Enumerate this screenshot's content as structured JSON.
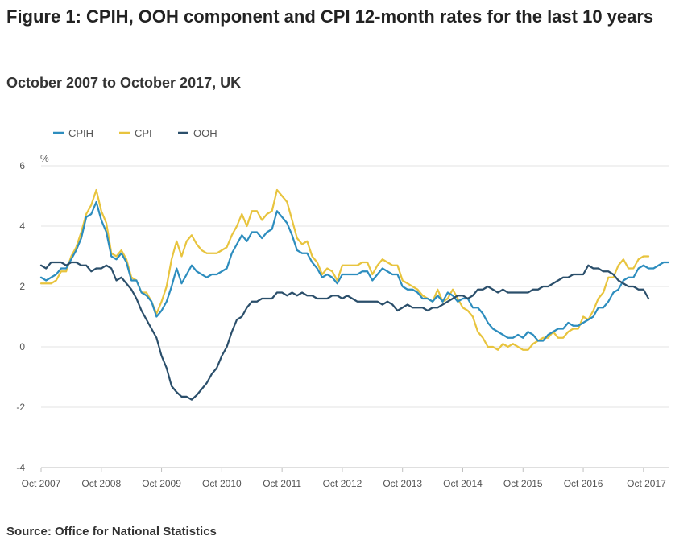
{
  "chart_data": {
    "type": "line",
    "title": "Figure 1: CPIH, OOH component and CPI 12-month rates for the last 10 years",
    "subtitle": "October 2007 to October 2017, UK",
    "source": "Source: Office for National Statistics",
    "ylabel": "%",
    "xlabel": "",
    "ylim": [
      -4,
      6
    ],
    "yticks": [
      -4,
      -2,
      0,
      2,
      4,
      6
    ],
    "ytick_labels": [
      "-4",
      "-2",
      "0",
      "2",
      "4",
      "6"
    ],
    "x_start": "Oct 2007",
    "x_end": "Oct 2017",
    "x_step": "monthly",
    "xtick_labels": [
      "Oct 2007",
      "Oct 2008",
      "Oct 2009",
      "Oct 2010",
      "Oct 2011",
      "Oct 2012",
      "Oct 2013",
      "Oct 2014",
      "Oct 2015",
      "Oct 2016",
      "Oct 2017"
    ],
    "grid": true,
    "legend_position": "top-left",
    "series": [
      {
        "name": "CPIH",
        "color": "#2d8dbe",
        "values": [
          2.3,
          2.2,
          2.3,
          2.4,
          2.6,
          2.6,
          2.9,
          3.2,
          3.6,
          4.3,
          4.4,
          4.8,
          4.2,
          3.8,
          3.0,
          2.9,
          3.1,
          2.8,
          2.2,
          2.2,
          1.8,
          1.7,
          1.5,
          1.0,
          1.2,
          1.5,
          2.0,
          2.6,
          2.1,
          2.4,
          2.7,
          2.5,
          2.4,
          2.3,
          2.4,
          2.4,
          2.5,
          2.6,
          3.1,
          3.4,
          3.7,
          3.5,
          3.8,
          3.8,
          3.6,
          3.8,
          3.9,
          4.5,
          4.3,
          4.1,
          3.7,
          3.2,
          3.1,
          3.1,
          2.8,
          2.6,
          2.3,
          2.4,
          2.3,
          2.1,
          2.4,
          2.4,
          2.4,
          2.4,
          2.5,
          2.5,
          2.2,
          2.4,
          2.6,
          2.5,
          2.4,
          2.4,
          2.0,
          1.9,
          1.9,
          1.8,
          1.6,
          1.6,
          1.5,
          1.7,
          1.5,
          1.8,
          1.7,
          1.5,
          1.6,
          1.6,
          1.3,
          1.3,
          1.1,
          0.8,
          0.6,
          0.5,
          0.4,
          0.3,
          0.3,
          0.4,
          0.3,
          0.5,
          0.4,
          0.2,
          0.2,
          0.4,
          0.5,
          0.6,
          0.6,
          0.8,
          0.7,
          0.7,
          0.8,
          0.9,
          1.0,
          1.3,
          1.3,
          1.5,
          1.8,
          1.9,
          2.2,
          2.3,
          2.3,
          2.6,
          2.7,
          2.6,
          2.6,
          2.7,
          2.8,
          2.8
        ]
      },
      {
        "name": "CPI",
        "color": "#e8c43e",
        "values": [
          2.1,
          2.1,
          2.1,
          2.2,
          2.5,
          2.5,
          3.0,
          3.3,
          3.8,
          4.4,
          4.7,
          5.2,
          4.5,
          4.1,
          3.1,
          3.0,
          3.2,
          2.9,
          2.3,
          2.2,
          1.8,
          1.8,
          1.5,
          1.1,
          1.5,
          2.0,
          2.9,
          3.5,
          3.0,
          3.5,
          3.7,
          3.4,
          3.2,
          3.1,
          3.1,
          3.1,
          3.2,
          3.3,
          3.7,
          4.0,
          4.4,
          4.0,
          4.5,
          4.5,
          4.2,
          4.4,
          4.5,
          5.2,
          5.0,
          4.8,
          4.2,
          3.6,
          3.4,
          3.5,
          3.0,
          2.8,
          2.4,
          2.6,
          2.5,
          2.2,
          2.7,
          2.7,
          2.7,
          2.7,
          2.8,
          2.8,
          2.4,
          2.7,
          2.9,
          2.8,
          2.7,
          2.7,
          2.2,
          2.1,
          2.0,
          1.9,
          1.7,
          1.6,
          1.5,
          1.9,
          1.5,
          1.6,
          1.9,
          1.6,
          1.3,
          1.2,
          1.0,
          0.5,
          0.3,
          0.0,
          0.0,
          -0.1,
          0.1,
          0.0,
          0.1,
          0.0,
          -0.1,
          -0.1,
          0.1,
          0.2,
          0.3,
          0.3,
          0.5,
          0.3,
          0.3,
          0.5,
          0.6,
          0.6,
          1.0,
          0.9,
          1.2,
          1.6,
          1.8,
          2.3,
          2.3,
          2.7,
          2.9,
          2.6,
          2.6,
          2.9,
          3.0,
          3.0
        ]
      },
      {
        "name": "OOH",
        "color": "#2b4f6b",
        "values": [
          2.7,
          2.6,
          2.8,
          2.8,
          2.8,
          2.7,
          2.8,
          2.8,
          2.7,
          2.7,
          2.5,
          2.6,
          2.6,
          2.7,
          2.6,
          2.2,
          2.3,
          2.1,
          1.9,
          1.6,
          1.2,
          0.9,
          0.6,
          0.3,
          -0.3,
          -0.7,
          -1.3,
          -1.5,
          -1.65,
          -1.65,
          -1.75,
          -1.6,
          -1.4,
          -1.2,
          -0.9,
          -0.7,
          -0.3,
          0.0,
          0.5,
          0.9,
          1.0,
          1.3,
          1.5,
          1.5,
          1.6,
          1.6,
          1.6,
          1.8,
          1.8,
          1.7,
          1.8,
          1.7,
          1.8,
          1.7,
          1.7,
          1.6,
          1.6,
          1.6,
          1.7,
          1.7,
          1.6,
          1.7,
          1.6,
          1.5,
          1.5,
          1.5,
          1.5,
          1.5,
          1.4,
          1.5,
          1.4,
          1.2,
          1.3,
          1.4,
          1.3,
          1.3,
          1.3,
          1.2,
          1.3,
          1.3,
          1.4,
          1.5,
          1.6,
          1.7,
          1.7,
          1.6,
          1.7,
          1.9,
          1.9,
          2.0,
          1.9,
          1.8,
          1.9,
          1.8,
          1.8,
          1.8,
          1.8,
          1.8,
          1.9,
          1.9,
          2.0,
          2.0,
          2.1,
          2.2,
          2.3,
          2.3,
          2.4,
          2.4,
          2.4,
          2.7,
          2.6,
          2.6,
          2.5,
          2.5,
          2.4,
          2.2,
          2.1,
          2.0,
          2.0,
          1.9,
          1.9,
          1.6
        ]
      }
    ]
  }
}
